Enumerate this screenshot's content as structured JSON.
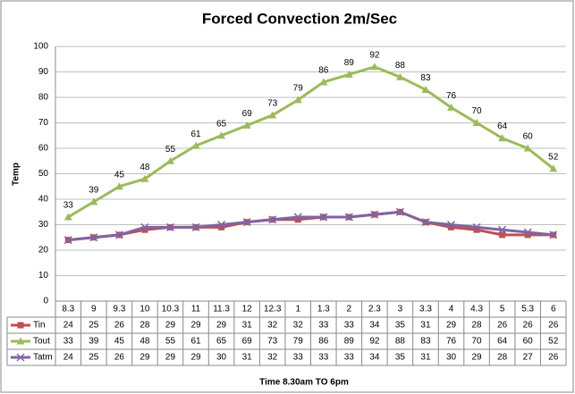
{
  "chart_data": {
    "type": "line",
    "title": "Forced Convection 2m/Sec",
    "y_label": "Temp",
    "x_label": "Time 8.30am TO 6pm",
    "categories": [
      "8.3",
      "9",
      "9.3",
      "10",
      "10.3",
      "11",
      "11.3",
      "12",
      "12.3",
      "1",
      "1.3",
      "2",
      "2.3",
      "3",
      "3.3",
      "4",
      "4.3",
      "5",
      "5.3",
      "6"
    ],
    "series": [
      {
        "name": "Tin",
        "color": "#c0504d",
        "marker": "square",
        "values": [
          24,
          25,
          26,
          28,
          29,
          29,
          29,
          31,
          32,
          32,
          33,
          33,
          34,
          35,
          31,
          29,
          28,
          26,
          26,
          26
        ]
      },
      {
        "name": "Tout",
        "color": "#9bbb59",
        "marker": "triangle",
        "data_labels": true,
        "values": [
          33,
          39,
          45,
          48,
          55,
          61,
          65,
          69,
          73,
          79,
          86,
          89,
          92,
          88,
          83,
          76,
          70,
          64,
          60,
          52
        ]
      },
      {
        "name": "Tatm",
        "color": "#8064a2",
        "marker": "x",
        "values": [
          24,
          25,
          26,
          29,
          29,
          29,
          30,
          31,
          32,
          33,
          33,
          33,
          34,
          35,
          31,
          30,
          29,
          28,
          27,
          26
        ]
      }
    ],
    "ylim": [
      0,
      100
    ],
    "yticks": [
      0,
      10,
      20,
      30,
      40,
      50,
      60,
      70,
      80,
      90,
      100
    ],
    "grid": true,
    "data_table": true
  }
}
